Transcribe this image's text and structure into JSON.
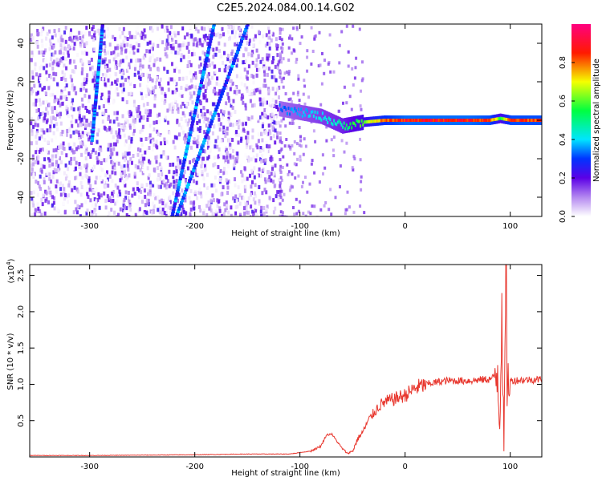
{
  "figure_title": "C2E5.2024.084.00.14.G02",
  "colors": {
    "snr_line": "#e8372e",
    "axis": "#000000",
    "spectrogram_background": "#ffffff"
  },
  "chart_data": [
    {
      "type": "heatmap",
      "title": "C2E5.2024.084.00.14.G02",
      "xlabel": "Height of straight line (km)",
      "ylabel": "Frequency (Hz)",
      "xlim": [
        -357,
        130
      ],
      "ylim": [
        -50,
        50
      ],
      "x_ticks": [
        -300,
        -200,
        -100,
        0,
        100
      ],
      "y_ticks": [
        -40,
        -20,
        0,
        20,
        40
      ],
      "colorbar": {
        "label": "Normalized spectral amplitude",
        "range": [
          0.0,
          1.0
        ],
        "ticks": [
          "0.0",
          "0.2",
          "0.4",
          "0.6",
          "0.8"
        ],
        "colormap": "rainbow (violet-blue-cyan-green-yellow-red-magenta)"
      },
      "features": {
        "main_trace": {
          "description": "Strong signal near 0 Hz from about -120 km to the right edge",
          "x": [
            -120,
            -100,
            -80,
            -60,
            -40,
            -20,
            0,
            20,
            40,
            60,
            80,
            90,
            100,
            130
          ],
          "y": [
            6,
            4,
            2,
            -3,
            -1,
            0,
            0,
            0,
            0,
            0,
            0,
            1,
            0,
            0
          ],
          "amplitude": [
            0.35,
            0.4,
            0.45,
            0.5,
            0.65,
            0.85,
            0.95,
            0.95,
            0.95,
            0.95,
            0.9,
            0.6,
            0.9,
            0.9
          ]
        },
        "diagonal_streaks": [
          {
            "x": [
              -222,
              -182
            ],
            "y": [
              -50,
              50
            ]
          },
          {
            "x": [
              -218,
              -150
            ],
            "y": [
              -50,
              50
            ]
          },
          {
            "x": [
              -298,
              -288
            ],
            "y": [
              -10,
              50
            ]
          }
        ],
        "noise_region": {
          "x": [
            -357,
            -120
          ],
          "y": [
            -50,
            50
          ]
        }
      }
    },
    {
      "type": "line",
      "xlabel": "Height of straight line (km)",
      "ylabel": "SNR (10 * v/v)",
      "y_multiplier_label": "(x10",
      "y_multiplier_exponent": "4",
      "y_multiplier_suffix": ")",
      "xlim": [
        -357,
        130
      ],
      "ylim": [
        0,
        2.65
      ],
      "x_ticks": [
        -300,
        -200,
        -100,
        0,
        100
      ],
      "y_ticks": [
        "0.5",
        "1.0",
        "1.5",
        "2.0",
        "2.5"
      ],
      "series": [
        {
          "x": [
            -357,
            -300,
            -200,
            -150,
            -110,
            -90,
            -80,
            -75,
            -70,
            -65,
            -60,
            -55,
            -50,
            -45,
            -40,
            -35,
            -30,
            -25,
            -20,
            -10,
            0,
            10,
            20,
            30,
            40,
            60,
            80,
            85,
            88,
            90,
            92,
            94,
            96,
            97,
            98,
            100,
            110,
            130
          ],
          "y": [
            0.02,
            0.02,
            0.03,
            0.04,
            0.04,
            0.08,
            0.15,
            0.3,
            0.32,
            0.22,
            0.12,
            0.05,
            0.08,
            0.25,
            0.35,
            0.5,
            0.6,
            0.7,
            0.75,
            0.8,
            0.85,
            0.95,
            1.0,
            1.03,
            1.05,
            1.05,
            1.07,
            1.1,
            1.2,
            0.4,
            2.15,
            0.1,
            2.65,
            1.0,
            1.05,
            1.05,
            1.06,
            1.07
          ]
        }
      ]
    }
  ]
}
